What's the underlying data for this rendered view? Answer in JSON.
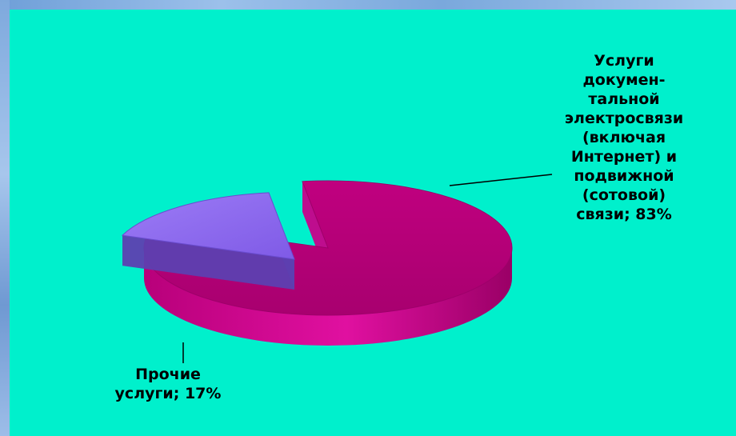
{
  "chart_data": {
    "type": "pie",
    "title": "",
    "slices": [
      {
        "label": "Услуги докумен-тальной электросвязи (включая Интернет) и подвижной (сотовой) связи",
        "value": 83,
        "display": "Услуги\nдокумен-\nтальной\nэлектросвязи\n(включая\nИнтернет) и\nподвижной\n(сотовой)\nсвязи; 83%",
        "color": "#d0008c"
      },
      {
        "label": "Прочие услуги",
        "value": 17,
        "display": "Прочие\nуслуги; 17%",
        "color": "#8f6bf0"
      }
    ],
    "background": "#00f0cc"
  }
}
